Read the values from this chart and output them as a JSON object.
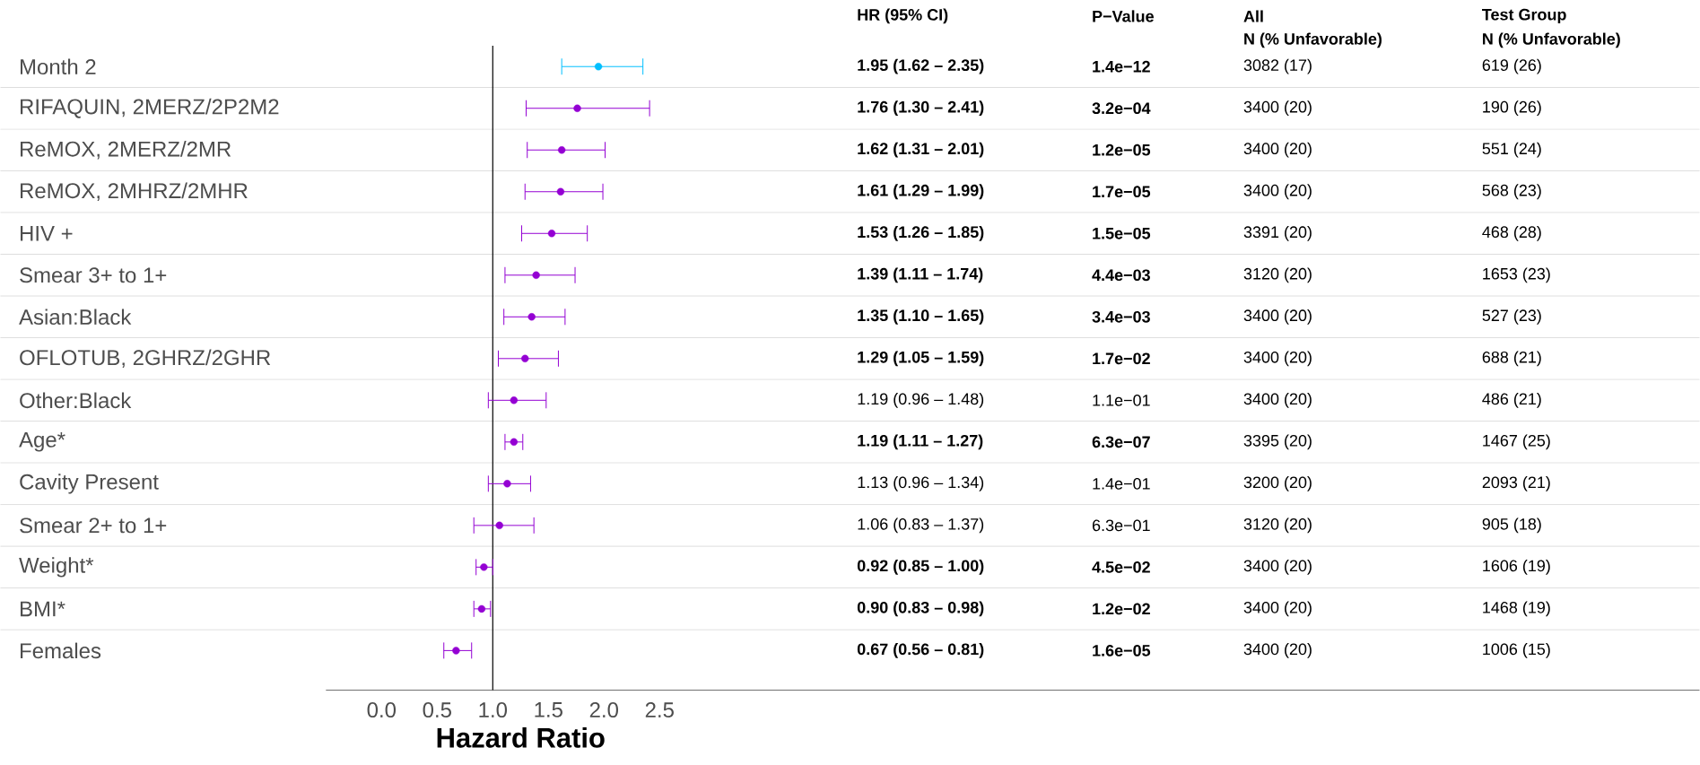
{
  "chart_data": {
    "type": "scatter",
    "orientation": "horizontal",
    "xlabel": "Hazard Ratio",
    "categories": [
      "Month 2",
      "RIFAQUIN, 2MERZ/2P2M2",
      "ReMOX, 2MERZ/2MR",
      "ReMOX, 2MHRZ/2MHR",
      "HIV +",
      "Smear 3+ to 1+",
      "Asian:Black",
      "OFLOTUB, 2GHRZ/2GHR",
      "Other:Black",
      "Age*",
      "Cavity Present",
      "Smear 2+ to 1+",
      "Weight*",
      "BMI*",
      "Females"
    ],
    "values": [
      1.95,
      1.76,
      1.62,
      1.61,
      1.53,
      1.39,
      1.35,
      1.29,
      1.19,
      1.19,
      1.13,
      1.06,
      0.92,
      0.9,
      0.67
    ],
    "errors": [
      [
        1.62,
        2.35
      ],
      [
        1.3,
        2.41
      ],
      [
        1.31,
        2.01
      ],
      [
        1.29,
        1.99
      ],
      [
        1.26,
        1.85
      ],
      [
        1.11,
        1.74
      ],
      [
        1.1,
        1.65
      ],
      [
        1.05,
        1.59
      ],
      [
        0.96,
        1.48
      ],
      [
        1.11,
        1.27
      ],
      [
        0.96,
        1.34
      ],
      [
        0.83,
        1.37
      ],
      [
        0.85,
        1.0
      ],
      [
        0.83,
        0.98
      ],
      [
        0.56,
        0.81
      ]
    ],
    "colors": [
      "#00bfff",
      "#9400d3",
      "#9400d3",
      "#9400d3",
      "#9400d3",
      "#9400d3",
      "#9400d3",
      "#9400d3",
      "#9400d3",
      "#9400d3",
      "#9400d3",
      "#9400d3",
      "#9400d3",
      "#9400d3",
      "#9400d3"
    ],
    "annotations": [
      "HR (95% CI)",
      "P−Value",
      "All",
      "N (% Unfavorable)",
      "Test Group",
      "N (% Unfavorable)",
      "1.95 (1.62 – 2.35)",
      "1.4e−12",
      "3082 (17)",
      "619 (26)",
      "1.76 (1.30 – 2.41)",
      "3.2e−04",
      "3400 (20)",
      "190 (26)",
      "1.62 (1.31 – 2.01)",
      "1.2e−05",
      "3400 (20)",
      "551 (24)",
      "1.61 (1.29 – 1.99)",
      "1.7e−05",
      "3400 (20)",
      "568 (23)",
      "1.53 (1.26 – 1.85)",
      "1.5e−05",
      "3391 (20)",
      "468 (28)",
      "1.39 (1.11 – 1.74)",
      "4.4e−03",
      "3120 (20)",
      "1653 (23)",
      "1.35 (1.10 – 1.65)",
      "3.4e−03",
      "3400 (20)",
      "527 (23)",
      "1.29 (1.05 – 1.59)",
      "1.7e−02",
      "3400 (20)",
      "688 (21)",
      "1.19 (0.96 – 1.48)",
      "1.1e−01",
      "3400 (20)",
      "486 (21)",
      "1.19 (1.11 – 1.27)",
      "6.3e−07",
      "3395 (20)",
      "1467 (25)",
      "1.13 (0.96 – 1.34)",
      "1.4e−01",
      "3200 (20)",
      "2093 (21)",
      "1.06 (0.83 – 1.37)",
      "6.3e−01",
      "3120 (20)",
      "905 (18)",
      "0.92 (0.85 – 1.00)",
      "4.5e−02",
      "3400 (20)",
      "1606 (19)",
      "0.90 (0.83 – 0.98)",
      "1.2e−02",
      "3400 (20)",
      "1468 (19)",
      "0.67 (0.56 – 0.81)",
      "1.6e−05",
      "3400 (20)",
      "1006 (15)"
    ],
    "ref_lines": [
      {
        "axis": "x",
        "value": 1,
        "color": "#000000"
      }
    ],
    "xlim": [
      -0.5,
      11.85
    ],
    "xticks": [
      {
        "value": 0,
        "label": "0.0"
      },
      {
        "value": 0.5,
        "label": "0.5"
      },
      {
        "value": 1,
        "label": "1.0"
      },
      {
        "value": 1.5,
        "label": "1.5"
      },
      {
        "value": 2,
        "label": "2.0"
      },
      {
        "value": 2.5,
        "label": "2.5"
      }
    ],
    "grid": "y",
    "marker": "circle"
  }
}
